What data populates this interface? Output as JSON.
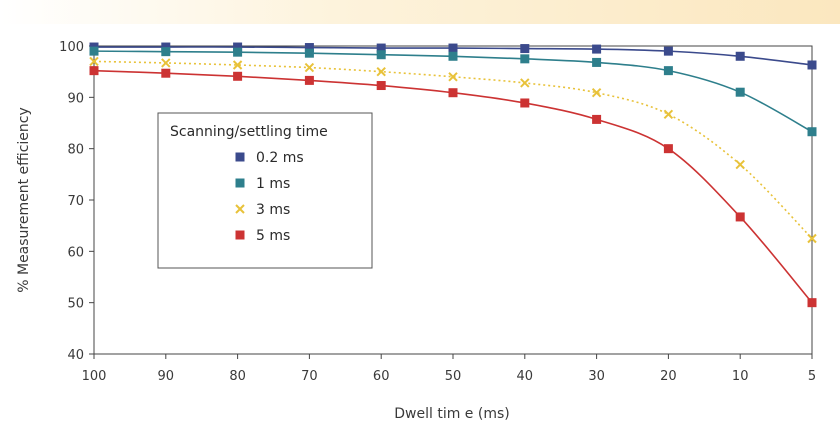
{
  "chart_data": {
    "type": "line",
    "title": "",
    "xlabel": "Dwell tim e (ms)",
    "ylabel": "% Measurement efficiency",
    "categories": [
      "100",
      "90",
      "80",
      "70",
      "60",
      "50",
      "40",
      "30",
      "20",
      "10",
      "5"
    ],
    "x": [
      100,
      90,
      80,
      70,
      60,
      50,
      40,
      30,
      20,
      10,
      5
    ],
    "yticks": [
      "40",
      "50",
      "60",
      "70",
      "80",
      "90",
      "100"
    ],
    "ylim": [
      40,
      100
    ],
    "grid": false,
    "legend": {
      "title": "Scanning/settling time",
      "placement": "inside-left"
    },
    "series": [
      {
        "name": "0.2 ms",
        "color": "#3b4a8c",
        "marker": "square",
        "line": "solid",
        "values": [
          99.8,
          99.8,
          99.8,
          99.7,
          99.6,
          99.6,
          99.5,
          99.4,
          99.0,
          98.0,
          96.3
        ]
      },
      {
        "name": "1 ms",
        "color": "#2e7f8c",
        "marker": "square",
        "line": "solid",
        "values": [
          99.0,
          98.9,
          98.8,
          98.6,
          98.3,
          98.0,
          97.5,
          96.8,
          95.2,
          91.0,
          83.3
        ]
      },
      {
        "name": "3 ms",
        "color": "#e8c23a",
        "marker": "x",
        "line": "dotted",
        "values": [
          97.0,
          96.7,
          96.3,
          95.8,
          95.0,
          94.0,
          92.8,
          90.9,
          86.7,
          76.9,
          62.5
        ]
      },
      {
        "name": "5 ms",
        "color": "#cc3333",
        "marker": "square",
        "line": "solid",
        "values": [
          95.2,
          94.7,
          94.1,
          93.3,
          92.3,
          90.9,
          88.9,
          85.7,
          80.0,
          66.7,
          50.0
        ]
      }
    ]
  }
}
